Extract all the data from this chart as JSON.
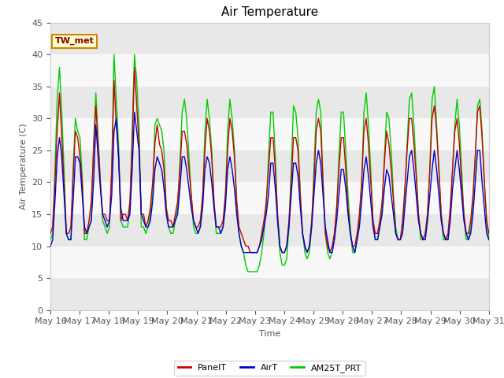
{
  "title": "Air Temperature",
  "xlabel": "Time",
  "ylabel": "Air Temperature (C)",
  "ylim": [
    0,
    45
  ],
  "annotation": "TW_met",
  "legend_labels": [
    "PanelT",
    "AirT",
    "AM25T_PRT"
  ],
  "legend_colors": [
    "#cc0000",
    "#0000cc",
    "#00cc00"
  ],
  "fig_bg": "#ffffff",
  "plot_bg": "#ffffff",
  "band_color": "#e8e8e8",
  "title_fontsize": 11,
  "axis_fontsize": 8,
  "tick_fontsize": 8,
  "legend_fontsize": 8,
  "x_tick_labels": [
    "May 16",
    "May 17",
    "May 18",
    "May 19",
    "May 20",
    "May 21",
    "May 22",
    "May 23",
    "May 24",
    "May 25",
    "May 26",
    "May 27",
    "May 28",
    "May 29",
    "May 30",
    "May 31"
  ],
  "yticks": [
    0,
    5,
    10,
    15,
    20,
    25,
    30,
    35,
    40,
    45
  ],
  "panelT": [
    12,
    13,
    20,
    28,
    34,
    27,
    20,
    12,
    12,
    13,
    21,
    28,
    27,
    24,
    20,
    12,
    12,
    14,
    17,
    25,
    32,
    26,
    20,
    15,
    15,
    14,
    14,
    22,
    36,
    29,
    24,
    14,
    15,
    15,
    14,
    17,
    26,
    38,
    32,
    26,
    15,
    15,
    13,
    14,
    16,
    20,
    26,
    29,
    26,
    25,
    22,
    16,
    14,
    14,
    13,
    15,
    17,
    22,
    28,
    28,
    26,
    22,
    18,
    14,
    13,
    13,
    14,
    18,
    25,
    30,
    28,
    24,
    17,
    13,
    13,
    13,
    14,
    18,
    25,
    30,
    28,
    24,
    17,
    13,
    12,
    11,
    10,
    10,
    9,
    9,
    9,
    9,
    10,
    12,
    14,
    17,
    22,
    27,
    27,
    22,
    15,
    10,
    9,
    9,
    10,
    14,
    20,
    27,
    27,
    25,
    18,
    12,
    10,
    9,
    10,
    14,
    20,
    28,
    30,
    28,
    20,
    12,
    10,
    9,
    10,
    12,
    16,
    22,
    27,
    27,
    22,
    16,
    12,
    10,
    10,
    12,
    15,
    20,
    28,
    30,
    26,
    20,
    14,
    12,
    12,
    14,
    17,
    23,
    28,
    26,
    22,
    17,
    12,
    11,
    11,
    14,
    19,
    25,
    30,
    30,
    26,
    21,
    15,
    12,
    11,
    12,
    15,
    22,
    30,
    32,
    28,
    22,
    15,
    12,
    11,
    12,
    16,
    22,
    28,
    30,
    26,
    20,
    15,
    12,
    12,
    14,
    18,
    24,
    31,
    32,
    27,
    20,
    14,
    12
  ],
  "airT": [
    10,
    11,
    17,
    24,
    27,
    24,
    18,
    12,
    11,
    11,
    17,
    24,
    24,
    23,
    18,
    13,
    12,
    13,
    14,
    20,
    29,
    24,
    19,
    15,
    14,
    13,
    14,
    18,
    28,
    30,
    24,
    16,
    14,
    14,
    14,
    15,
    22,
    31,
    28,
    25,
    15,
    14,
    13,
    13,
    14,
    17,
    22,
    24,
    23,
    22,
    19,
    15,
    13,
    13,
    13,
    14,
    15,
    19,
    24,
    24,
    22,
    19,
    16,
    14,
    13,
    12,
    13,
    16,
    22,
    24,
    23,
    20,
    16,
    13,
    13,
    12,
    13,
    16,
    22,
    24,
    22,
    19,
    15,
    12,
    10,
    9,
    9,
    9,
    9,
    9,
    9,
    9,
    10,
    11,
    13,
    15,
    18,
    23,
    23,
    19,
    14,
    10,
    9,
    9,
    10,
    13,
    18,
    23,
    23,
    21,
    16,
    12,
    10,
    9,
    10,
    13,
    18,
    23,
    25,
    23,
    18,
    13,
    11,
    9,
    9,
    11,
    14,
    18,
    22,
    22,
    19,
    15,
    12,
    10,
    9,
    11,
    13,
    17,
    22,
    24,
    21,
    17,
    13,
    11,
    11,
    13,
    15,
    19,
    22,
    21,
    18,
    15,
    12,
    11,
    11,
    12,
    16,
    20,
    24,
    25,
    22,
    18,
    14,
    12,
    11,
    11,
    14,
    18,
    22,
    25,
    22,
    18,
    14,
    12,
    11,
    11,
    14,
    19,
    22,
    25,
    22,
    18,
    14,
    12,
    11,
    12,
    15,
    20,
    25,
    25,
    20,
    16,
    12,
    11
  ],
  "am25T": [
    11,
    12,
    22,
    33,
    38,
    31,
    22,
    12,
    11,
    11,
    22,
    30,
    28,
    27,
    21,
    11,
    11,
    13,
    14,
    26,
    34,
    27,
    20,
    14,
    13,
    12,
    13,
    22,
    40,
    33,
    26,
    14,
    13,
    13,
    13,
    16,
    28,
    40,
    36,
    29,
    13,
    13,
    12,
    13,
    15,
    18,
    29,
    30,
    29,
    28,
    25,
    16,
    13,
    12,
    12,
    14,
    16,
    23,
    31,
    33,
    30,
    24,
    18,
    13,
    12,
    12,
    13,
    17,
    28,
    33,
    30,
    25,
    17,
    12,
    12,
    12,
    13,
    17,
    28,
    33,
    30,
    25,
    17,
    12,
    10,
    9,
    7,
    6,
    6,
    6,
    6,
    6,
    7,
    9,
    12,
    16,
    24,
    31,
    31,
    24,
    14,
    9,
    7,
    7,
    8,
    13,
    22,
    32,
    31,
    27,
    18,
    12,
    9,
    8,
    9,
    13,
    22,
    31,
    33,
    31,
    20,
    12,
    9,
    8,
    9,
    11,
    16,
    24,
    31,
    31,
    25,
    18,
    13,
    9,
    9,
    11,
    14,
    20,
    31,
    34,
    29,
    22,
    14,
    11,
    11,
    13,
    16,
    24,
    31,
    30,
    25,
    18,
    13,
    11,
    11,
    12,
    18,
    26,
    33,
    34,
    29,
    22,
    15,
    11,
    11,
    12,
    15,
    22,
    33,
    35,
    29,
    22,
    15,
    11,
    11,
    11,
    15,
    22,
    29,
    33,
    29,
    22,
    15,
    11,
    11,
    13,
    17,
    24,
    32,
    33,
    28,
    20,
    14,
    11
  ]
}
